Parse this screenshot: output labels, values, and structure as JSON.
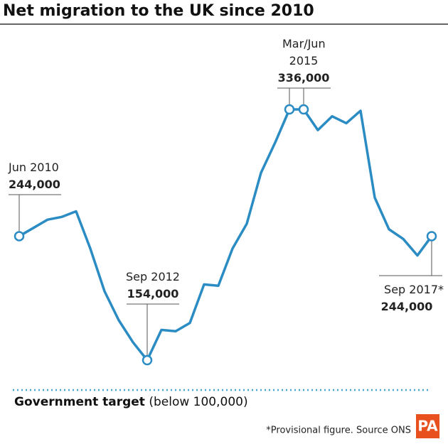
{
  "chart_data": {
    "type": "line",
    "title": "Net migration to the UK since 2010",
    "categories": [
      "Jun 2010",
      null,
      null,
      null,
      null,
      null,
      null,
      null,
      null,
      "Sep 2012",
      null,
      null,
      null,
      null,
      null,
      null,
      null,
      null,
      null,
      "Mar/Jun 2015",
      null,
      null,
      null,
      null,
      null,
      null,
      null,
      null,
      null,
      "Sep 2017*"
    ],
    "values": [
      244000,
      250000,
      256000,
      258000,
      262000,
      235000,
      204000,
      183000,
      167000,
      154000,
      176000,
      175000,
      181000,
      209000,
      208000,
      235000,
      253000,
      290000,
      312000,
      336000,
      336000,
      321000,
      331000,
      326000,
      335000,
      272000,
      249000,
      242000,
      230000,
      244000
    ],
    "value_labels": [
      "244,000",
      null,
      null,
      null,
      null,
      null,
      null,
      null,
      null,
      "154,000",
      null,
      null,
      null,
      null,
      null,
      null,
      null,
      null,
      null,
      "336,000",
      null,
      null,
      null,
      null,
      null,
      null,
      null,
      null,
      null,
      "244,000"
    ],
    "color": "#2b8cc4",
    "target": {
      "label": "Government target",
      "note": "(below 100,000)"
    },
    "footnote": "*Provisional figure. Source ONS",
    "logo": "PA"
  }
}
